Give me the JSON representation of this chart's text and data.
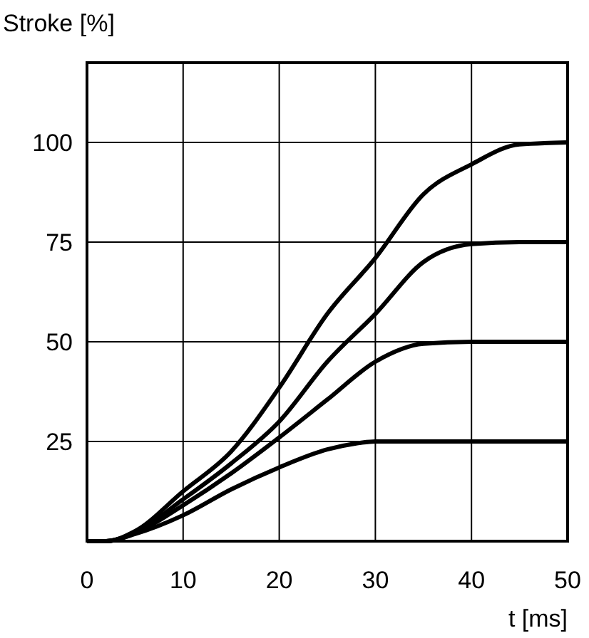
{
  "chart_data": {
    "type": "line",
    "xlabel": "t [ms]",
    "ylabel": "Stroke [%]",
    "xlim": [
      0,
      50
    ],
    "ylim": [
      0,
      120
    ],
    "xticks": [
      0,
      10,
      20,
      30,
      40,
      50
    ],
    "yticks": [
      25,
      50,
      75,
      100
    ],
    "grid": true,
    "line_style": "solid",
    "series": [
      {
        "color": "#000000",
        "x": [
          0,
          2,
          5,
          10,
          15,
          20,
          25,
          30,
          35,
          40,
          45,
          50
        ],
        "values": [
          0,
          0,
          2.5,
          12.5,
          22.5,
          38.5,
          57,
          71,
          87,
          94.5,
          99.5,
          100
        ]
      },
      {
        "color": "#000000",
        "x": [
          0,
          2,
          5,
          10,
          15,
          20,
          25,
          30,
          35,
          40,
          45,
          50
        ],
        "values": [
          0,
          0,
          2.2,
          10.5,
          19.5,
          30,
          45,
          57,
          70,
          74.5,
          75,
          75
        ]
      },
      {
        "color": "#000000",
        "x": [
          0,
          2,
          5,
          10,
          15,
          20,
          25,
          30,
          35,
          40,
          50
        ],
        "values": [
          0,
          0,
          2,
          9,
          17,
          26,
          35.5,
          45,
          49.5,
          50,
          50
        ]
      },
      {
        "color": "#000000",
        "x": [
          0,
          2,
          5,
          10,
          15,
          20,
          25,
          28,
          30,
          50
        ],
        "values": [
          0,
          0,
          1.8,
          6.5,
          13,
          18.5,
          23,
          24.5,
          25,
          25
        ]
      }
    ]
  }
}
